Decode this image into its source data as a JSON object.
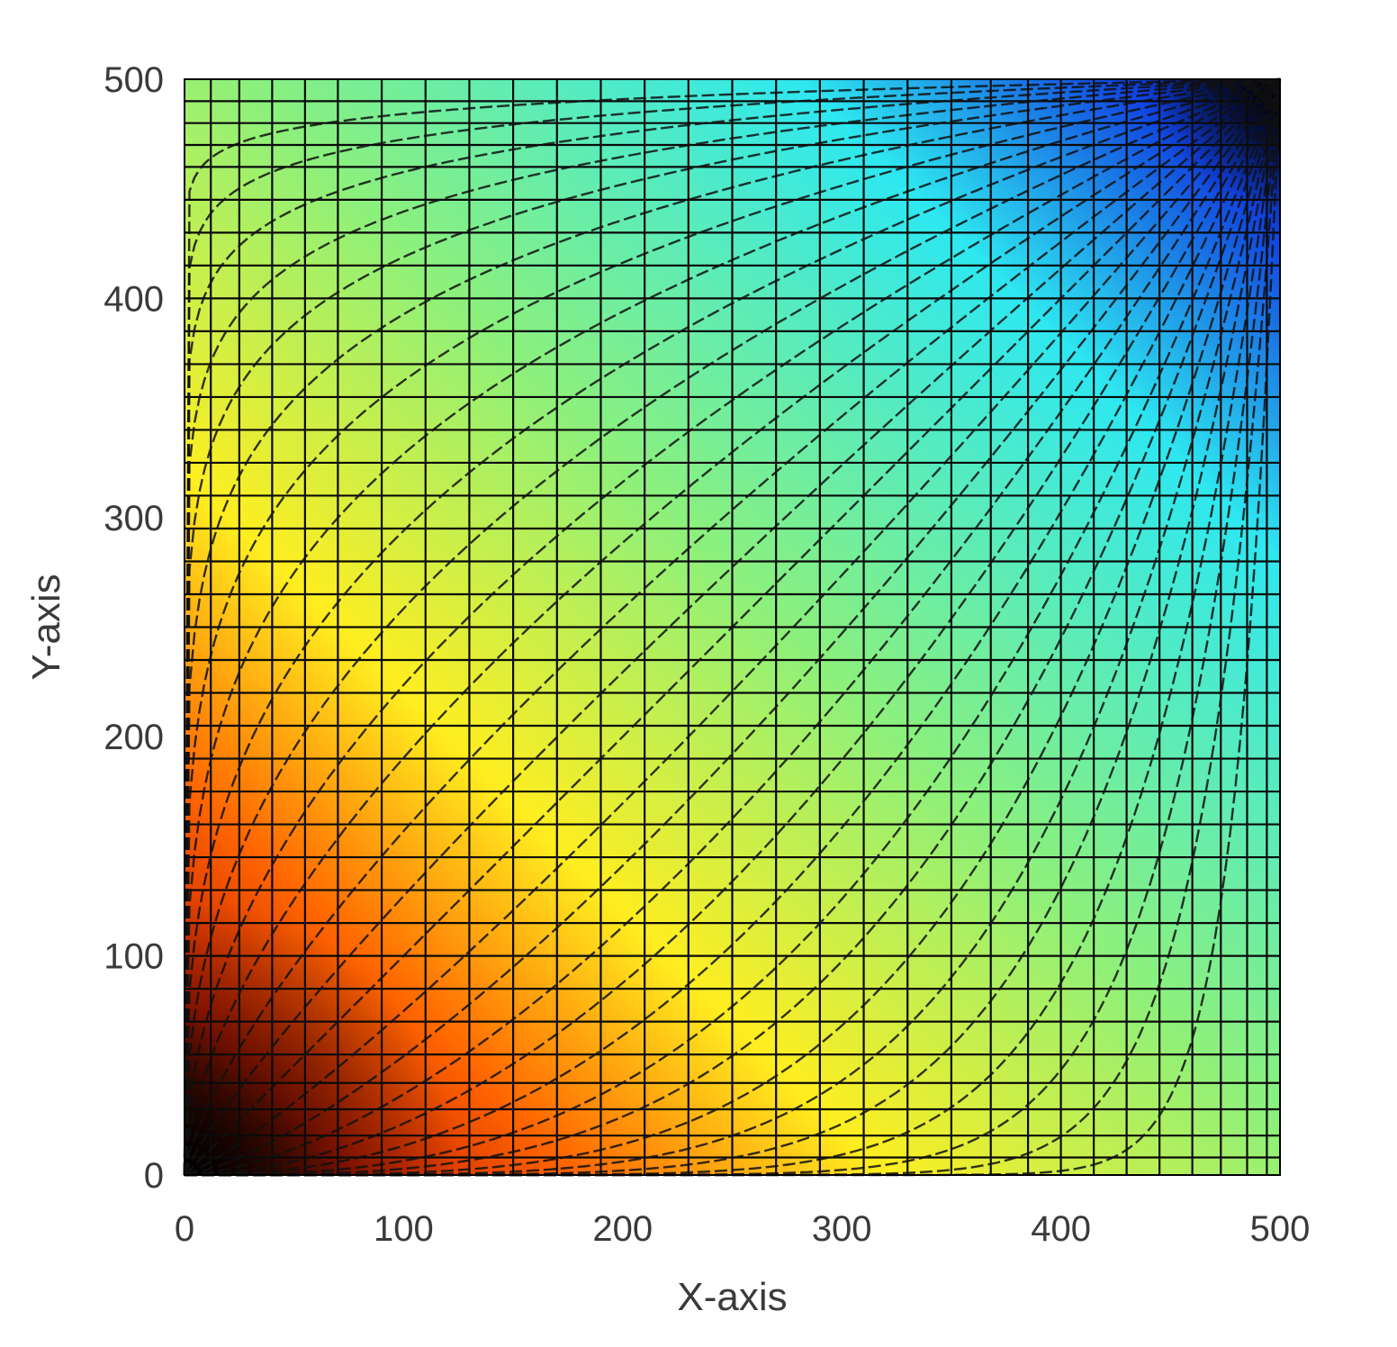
{
  "chart_data": {
    "type": "heatmap",
    "xlabel": "X-axis",
    "ylabel": "Y-axis",
    "xlim": [
      0,
      500
    ],
    "ylim": [
      0,
      500
    ],
    "x_ticks": [
      "0",
      "100",
      "200",
      "300",
      "400",
      "500"
    ],
    "y_ticks": [
      "0",
      "100",
      "200",
      "300",
      "400",
      "500"
    ],
    "colormap": {
      "stops": [
        "#000000",
        "#c81e00",
        "#ff6600",
        "#ffee20",
        "#8ef07a",
        "#2ee8f0",
        "#1040e0",
        "#000010"
      ],
      "low_corner": "bottom-left",
      "high_corner": "top-right"
    },
    "grid": true,
    "vertical_lines_x": [
      12,
      25,
      40,
      55,
      70,
      90,
      110,
      130,
      150,
      170,
      190,
      210,
      230,
      250,
      270,
      290,
      310,
      330,
      350,
      368,
      385,
      400,
      415,
      430,
      445,
      460,
      473,
      485,
      494
    ],
    "horizontal_lines_y": [
      8,
      18,
      30,
      42,
      55,
      70,
      85,
      100,
      115,
      130,
      145,
      160,
      175,
      190,
      205,
      220,
      235,
      250,
      265,
      280,
      295,
      310,
      325,
      340,
      355,
      370,
      385,
      400,
      415,
      430,
      445,
      460,
      470,
      480,
      490
    ],
    "curve_family": {
      "description_form": "y = 500 * (x/500)^k",
      "exponents": [
        0.02,
        0.035,
        0.055,
        0.08,
        0.11,
        0.15,
        0.2,
        0.26,
        0.33,
        0.41,
        0.5,
        0.6,
        0.72,
        0.85,
        1.0,
        1.18,
        1.38,
        1.62,
        1.9,
        2.25,
        2.7,
        3.2,
        3.9,
        4.8,
        6.0,
        7.8,
        10.5,
        15.0,
        25.0
      ]
    }
  }
}
